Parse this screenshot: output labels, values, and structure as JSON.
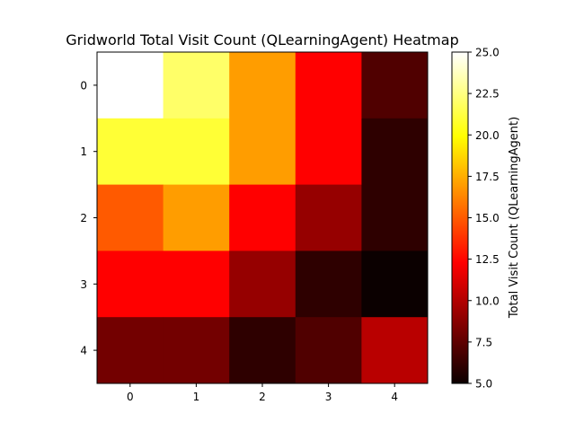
{
  "chart_data": {
    "type": "heatmap",
    "title": "Gridworld Total Visit Count (QLearningAgent) Heatmap",
    "xlabel": "",
    "ylabel": "",
    "colormap": "hot",
    "x_ticks": [
      "0",
      "1",
      "2",
      "3",
      "4"
    ],
    "y_ticks": [
      "0",
      "1",
      "2",
      "3",
      "4"
    ],
    "values": [
      [
        25,
        22,
        17,
        12,
        7
      ],
      [
        21,
        21,
        17,
        12,
        6
      ],
      [
        15,
        17,
        12,
        9,
        6
      ],
      [
        12,
        12,
        9,
        6,
        5
      ],
      [
        8,
        8,
        6,
        7,
        10
      ]
    ],
    "vmin": 5,
    "vmax": 25,
    "colorbar": {
      "label": "Total Visit Count (QLearningAgent)",
      "ticks": [
        "5.0",
        "7.5",
        "10.0",
        "12.5",
        "15.0",
        "17.5",
        "20.0",
        "22.5",
        "25.0"
      ],
      "tick_values": [
        5,
        7.5,
        10,
        12.5,
        15,
        17.5,
        20,
        22.5,
        25
      ]
    }
  }
}
